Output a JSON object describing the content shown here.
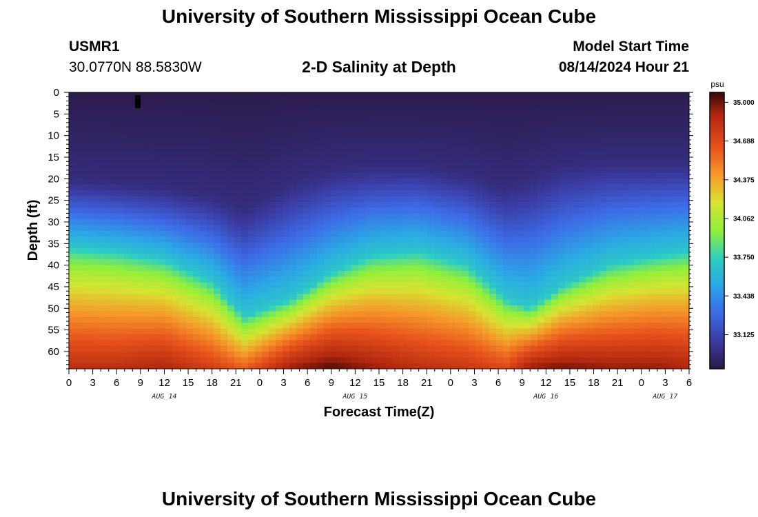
{
  "page": {
    "title_top": "University of Southern Mississippi Ocean Cube",
    "title_bottom": "University of Southern Mississippi Ocean Cube",
    "station_id": "USMR1",
    "station_coords": "30.0770N  88.5830W",
    "plot_title": "2-D Salinity at Depth",
    "model_label": "Model Start Time",
    "model_time": "08/14/2024 Hour 21"
  },
  "colors": {
    "scale": [
      "#2b1a48",
      "#3b3aa0",
      "#3d6ae6",
      "#2ba6e6",
      "#2dd0bf",
      "#8fef3a",
      "#d7e432",
      "#f59a2a",
      "#e8521c",
      "#b0260e",
      "#3a0808"
    ]
  },
  "chart_data": {
    "type": "heatmap",
    "title": "2-D Salinity at Depth",
    "xlabel": "Forecast Time(Z)",
    "ylabel": "Depth (ft)",
    "x_tick_labels": [
      "0",
      "3",
      "6",
      "9",
      "12",
      "15",
      "18",
      "21",
      "0",
      "3",
      "6",
      "9",
      "12",
      "15",
      "18",
      "21",
      "0",
      "3",
      "6",
      "9",
      "12",
      "15",
      "18",
      "21",
      "0",
      "3",
      "6"
    ],
    "x_hours_range": [
      0,
      78
    ],
    "date_labels": [
      {
        "label": "AUG 14",
        "hour": 12
      },
      {
        "label": "AUG 15",
        "hour": 36
      },
      {
        "label": "AUG 16",
        "hour": 60
      },
      {
        "label": "AUG 17",
        "hour": 75
      }
    ],
    "y_tick_labels": [
      "0",
      "5",
      "10",
      "15",
      "20",
      "25",
      "30",
      "35",
      "40",
      "45",
      "50",
      "55",
      "60"
    ],
    "ylim": [
      0,
      64
    ],
    "colorbar": {
      "unit": "psu",
      "tick_labels": [
        "35.000",
        "34.688",
        "34.375",
        "34.062",
        "33.750",
        "33.438",
        "33.125"
      ],
      "range": [
        32.85,
        35.08
      ]
    },
    "profile_description": "Salinity increases with depth; low-salinity layer deepens near hours 18-22 and 54-57",
    "profile_hours": [
      0,
      6,
      12,
      18,
      22,
      28,
      33,
      38,
      44,
      50,
      55,
      58,
      62,
      68,
      74,
      78
    ],
    "halocline_depth_ft": [
      36,
      37,
      39,
      44,
      52,
      48,
      42,
      38,
      37,
      40,
      48,
      50,
      45,
      40,
      38,
      37
    ],
    "surface_layer_depth_ft": [
      20,
      21,
      22,
      24,
      27,
      21,
      18,
      17,
      17,
      19,
      22,
      20,
      17,
      16,
      16,
      16
    ],
    "bottom_salinity_psu": [
      34.85,
      34.85,
      34.9,
      34.75,
      34.6,
      34.95,
      35.05,
      34.95,
      34.85,
      34.8,
      34.7,
      34.95,
      35.0,
      34.95,
      34.95,
      34.9
    ]
  }
}
